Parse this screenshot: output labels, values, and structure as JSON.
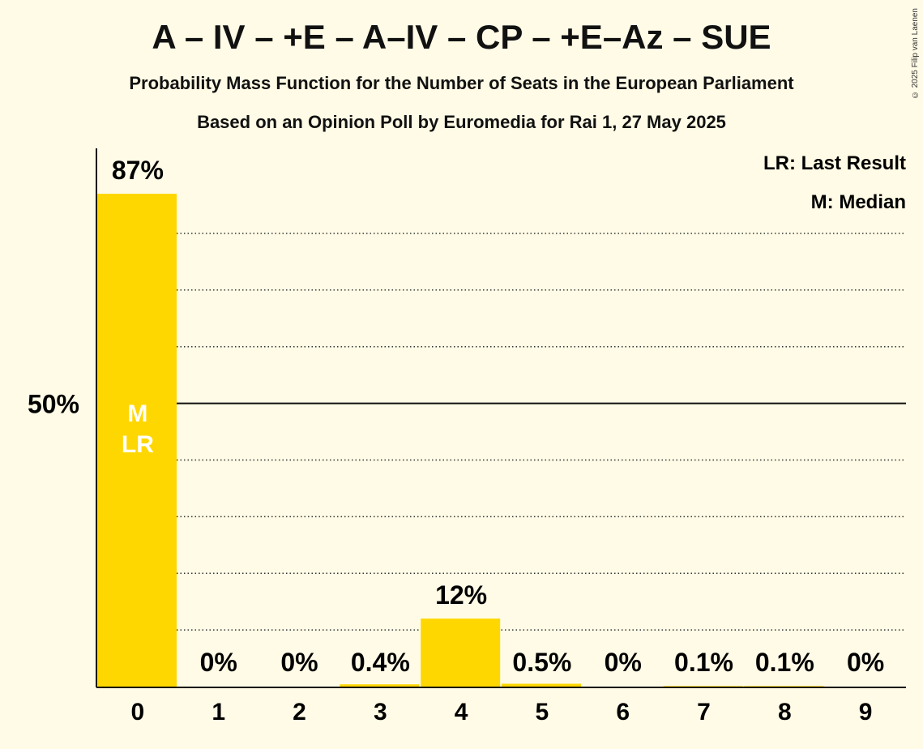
{
  "title": "A – IV – +E – A–IV – CP – +E–Az – SUE",
  "subtitle_1": "Probability Mass Function for the Number of Seats in the European Parliament",
  "subtitle_2": "Based on an Opinion Poll by Euromedia for Rai 1, 27 May 2025",
  "copyright": "© 2025 Filip van Laenen",
  "legend": {
    "last_result": "LR: Last Result",
    "median": "M: Median",
    "placement": "top-right"
  },
  "colors": {
    "bar": "#ffd700",
    "background": "#fffbe6",
    "median_text": "#ffffff"
  },
  "chart_data": {
    "type": "bar",
    "title": "A – IV – +E – A–IV – CP – +E–Az – SUE",
    "xlabel": "",
    "ylabel": "",
    "categories": [
      "0",
      "1",
      "2",
      "3",
      "4",
      "5",
      "6",
      "7",
      "8",
      "9"
    ],
    "values": [
      87,
      0,
      0,
      0.4,
      12,
      0.5,
      0,
      0.1,
      0.1,
      0
    ],
    "value_labels": [
      "87%",
      "0%",
      "0%",
      "0.4%",
      "12%",
      "0.5%",
      "0%",
      "0.1%",
      "0.1%",
      "0%"
    ],
    "ylim": [
      0,
      87
    ],
    "y_ticks": [
      {
        "value": 50,
        "label": "50%"
      }
    ],
    "gridlines_dotted": [
      10,
      20,
      30,
      40,
      60,
      70,
      80
    ],
    "gridline_solid": 50,
    "median_seats": 0,
    "last_result_seats": 0,
    "bar_markers": {
      "median": "M",
      "last_result": "LR"
    }
  }
}
